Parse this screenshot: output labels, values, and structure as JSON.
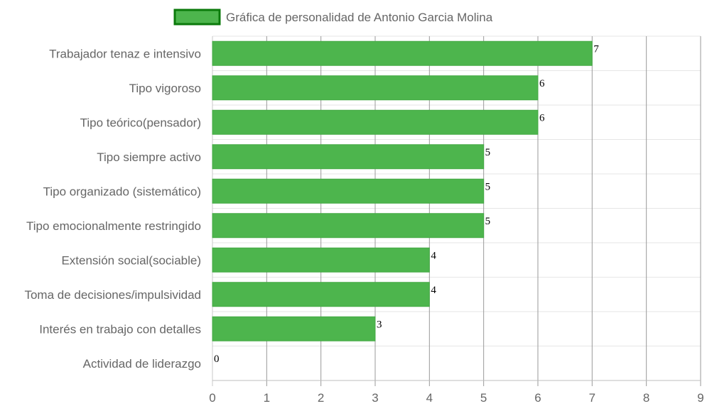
{
  "chart_data": {
    "type": "bar",
    "orientation": "horizontal",
    "title": "",
    "legend": {
      "label": "Gráfica de personalidad de Antonio Garcia Molina",
      "position": "top"
    },
    "categories": [
      "Trabajador tenaz e intensivo",
      "Tipo vigoroso",
      "Tipo teórico(pensador)",
      "Tipo siempre activo",
      "Tipo organizado (sistemático)",
      "Tipo emocionalmente restringido",
      "Extensión social(sociable)",
      "Toma de decisiones/impulsividad",
      "Interés en trabajo con detalles",
      "Actividad de liderazgo"
    ],
    "values": [
      7,
      6,
      6,
      5,
      5,
      5,
      4,
      4,
      3,
      0
    ],
    "data_labels": [
      "7",
      "6",
      "6",
      "5",
      "5",
      "5",
      "4",
      "4",
      "3",
      "0"
    ],
    "x_ticks": [
      "0",
      "1",
      "2",
      "3",
      "4",
      "5",
      "6",
      "7",
      "8",
      "9"
    ],
    "xlim": [
      0,
      9
    ],
    "grid": true,
    "colors": {
      "bar_fill": "#4db54d",
      "bar_border": "#44a944",
      "legend_border": "#0b7a0b",
      "legend_fill": "#4db54d",
      "grid": "#e6e6e6",
      "vgrid": "#999999"
    }
  }
}
